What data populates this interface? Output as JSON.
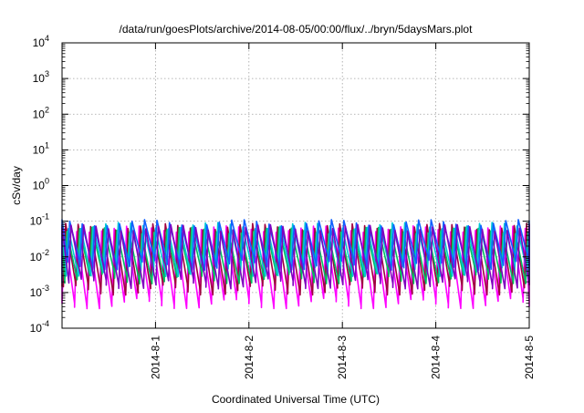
{
  "chart_data": {
    "type": "line",
    "title": "/data/run/goesPlots/archive/2014-08-05/00:00/flux/../bryn/5daysMars.plot",
    "xlabel": "Coordinated Universal Time (UTC)",
    "ylabel": "cSv/day",
    "x_range": [
      "2014-07-31T00:00",
      "2014-08-05T00:00"
    ],
    "x_ticks": [
      "2014-8-1",
      "2014-8-2",
      "2014-8-3",
      "2014-8-4",
      "2014-8-5"
    ],
    "y_scale": "log",
    "ylim": [
      0.0001,
      10000
    ],
    "y_ticks": [
      {
        "value": 0.0001,
        "base": "10",
        "exp": "-4"
      },
      {
        "value": 0.001,
        "base": "10",
        "exp": "-3"
      },
      {
        "value": 0.01,
        "base": "10",
        "exp": "-2"
      },
      {
        "value": 0.1,
        "base": "10",
        "exp": "-1"
      },
      {
        "value": 1,
        "base": "10",
        "exp": "0"
      },
      {
        "value": 10,
        "base": "10",
        "exp": "1"
      },
      {
        "value": 100,
        "base": "10",
        "exp": "2"
      },
      {
        "value": 1000,
        "base": "10",
        "exp": "3"
      },
      {
        "value": 10000,
        "base": "10",
        "exp": "4"
      }
    ],
    "grid": true,
    "legend": "none",
    "series": [
      {
        "color": "#ff00ff",
        "peak": 0.06,
        "trough": 0.0005
      },
      {
        "color": "#a00040",
        "peak": 0.07,
        "trough": 0.0012
      },
      {
        "color": "#00c060",
        "peak": 0.055,
        "trough": 0.0025
      },
      {
        "color": "#00c8d8",
        "peak": 0.075,
        "trough": 0.004
      },
      {
        "color": "#1060ff",
        "peak": 0.09,
        "trough": 0.006
      },
      {
        "color": "#8000c0",
        "peak": 0.065,
        "trough": 0.0018
      }
    ],
    "cycle_hours": 3.2,
    "note_values": "spiky periodic series oscillating between ~5e-4 and ~1e-1"
  }
}
